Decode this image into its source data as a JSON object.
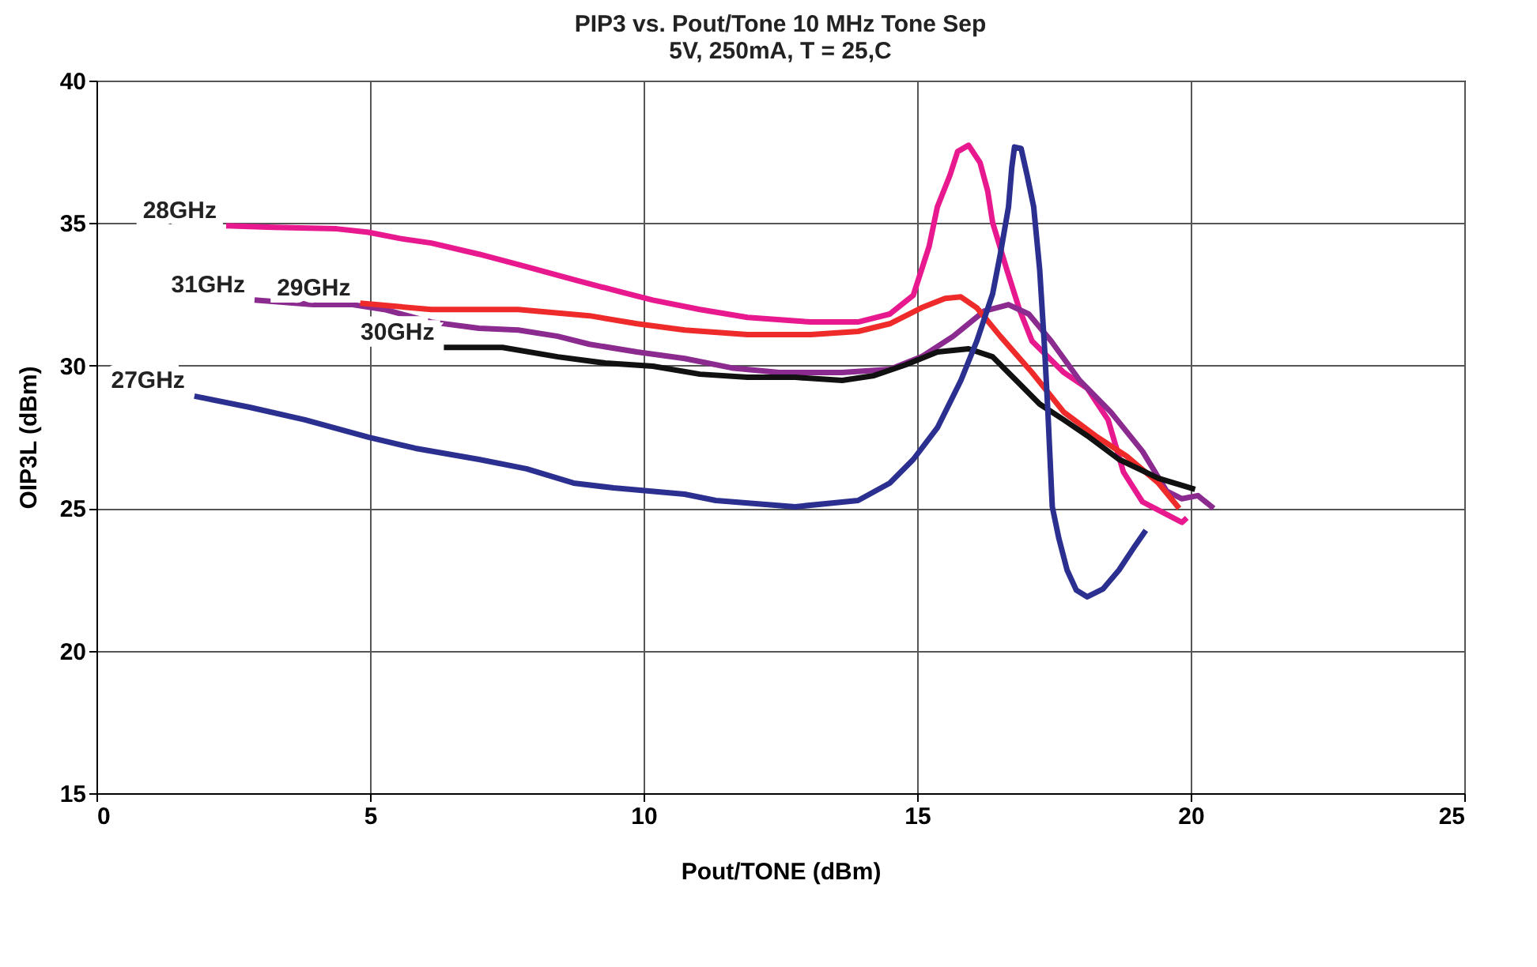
{
  "chart_data": {
    "type": "line",
    "title": [
      "PIP3 vs. Pout/Tone 10 MHz Tone Sep",
      "5V, 250mA, T = 25,C"
    ],
    "xlabel": "Pout/TONE (dBm)",
    "ylabel": "OIP3L (dBm)",
    "xlim": [
      0,
      25
    ],
    "xticks": [
      0,
      5,
      10,
      15,
      20,
      25
    ],
    "ylim": [
      15,
      40
    ],
    "yticks": [
      15,
      20,
      25,
      30,
      35,
      40
    ],
    "grid": true,
    "marker": "none",
    "line_style": "solid",
    "series": [
      {
        "name": "28GHz",
        "color": "#e8198f",
        "x": [
          2.37,
          3.24,
          4.39,
          4.97,
          5.55,
          6.12,
          6.99,
          7.86,
          8.72,
          9.59,
          10.17,
          11.03,
          11.9,
          13.06,
          13.92,
          14.5,
          14.93,
          15.08,
          15.22,
          15.37,
          15.6,
          15.74,
          15.94,
          16.15,
          16.29,
          16.38,
          16.64,
          16.87,
          17.1,
          17.68,
          18.11,
          18.49,
          18.77,
          19.12,
          19.56,
          19.84,
          19.93
        ],
        "values": [
          34.91,
          34.85,
          34.8,
          34.68,
          34.46,
          34.3,
          33.91,
          33.47,
          33.02,
          32.58,
          32.3,
          31.97,
          31.69,
          31.53,
          31.53,
          31.81,
          32.47,
          33.36,
          34.19,
          35.57,
          36.68,
          37.51,
          37.73,
          37.12,
          36.12,
          35.02,
          33.36,
          31.97,
          30.86,
          29.76,
          29.2,
          28.1,
          26.27,
          25.22,
          24.78,
          24.5,
          24.66
        ]
      },
      {
        "name": "31GHz",
        "color": "#8b2a8f",
        "x": [
          2.89,
          3.96,
          4.68,
          5.26,
          6.12,
          6.99,
          7.71,
          8.43,
          9.01,
          9.88,
          10.75,
          11.61,
          12.48,
          13.63,
          14.5,
          15.08,
          15.66,
          16.23,
          16.67,
          17.04,
          17.45,
          17.97,
          18.54,
          19.12,
          19.56,
          19.84,
          20.13,
          20.42
        ],
        "values": [
          32.3,
          32.14,
          32.14,
          31.97,
          31.53,
          31.31,
          31.25,
          31.03,
          30.75,
          30.48,
          30.25,
          29.92,
          29.76,
          29.76,
          29.87,
          30.31,
          31.03,
          31.92,
          32.14,
          31.81,
          30.86,
          29.48,
          28.37,
          26.99,
          25.6,
          25.33,
          25.44,
          24.99
        ]
      },
      {
        "name": "29GHz",
        "color": "#ee2a2a",
        "x": [
          4.82,
          6.12,
          7.71,
          9.01,
          9.88,
          10.75,
          11.9,
          13.06,
          13.92,
          14.5,
          15.08,
          15.51,
          15.8,
          16.09,
          16.52,
          17.1,
          17.68,
          18.26,
          18.83,
          19.41,
          19.79
        ],
        "values": [
          32.19,
          31.97,
          31.97,
          31.75,
          31.47,
          31.25,
          31.09,
          31.09,
          31.2,
          31.47,
          32.03,
          32.36,
          32.41,
          32.03,
          31.03,
          29.76,
          28.37,
          27.54,
          26.82,
          25.88,
          24.99
        ]
      },
      {
        "name": "30GHz",
        "color": "#111111",
        "x": [
          6.35,
          7.42,
          8.43,
          9.3,
          10.17,
          11.03,
          11.9,
          12.77,
          13.63,
          14.21,
          14.79,
          15.37,
          15.94,
          16.38,
          16.81,
          17.24,
          17.68,
          18.11,
          18.69,
          19.41,
          20.08
        ],
        "values": [
          30.64,
          30.64,
          30.31,
          30.09,
          29.98,
          29.7,
          29.59,
          29.59,
          29.48,
          29.65,
          30.03,
          30.48,
          30.59,
          30.31,
          29.48,
          28.65,
          28.1,
          27.54,
          26.71,
          26.05,
          25.66
        ]
      },
      {
        "name": "27GHz",
        "color": "#2b2f8f",
        "x": [
          1.79,
          2.8,
          3.81,
          4.97,
          5.83,
          6.99,
          7.86,
          8.72,
          9.45,
          10.75,
          11.32,
          12.77,
          13.92,
          14.5,
          14.93,
          15.37,
          15.8,
          16.09,
          16.38,
          16.52,
          16.67,
          16.73,
          16.78,
          16.9,
          17.01,
          17.13,
          17.24,
          17.33,
          17.39,
          17.47,
          17.59,
          17.74,
          17.91,
          18.11,
          18.4,
          18.69,
          18.98,
          19.18
        ],
        "values": [
          28.93,
          28.54,
          28.1,
          27.49,
          27.1,
          26.71,
          26.38,
          25.88,
          25.71,
          25.49,
          25.27,
          25.05,
          25.27,
          25.88,
          26.71,
          27.82,
          29.48,
          30.86,
          32.52,
          33.91,
          35.57,
          36.95,
          37.67,
          37.62,
          36.68,
          35.57,
          33.36,
          30.59,
          28.37,
          25.05,
          23.94,
          22.83,
          22.12,
          21.89,
          22.17,
          22.83,
          23.67,
          24.22
        ]
      }
    ]
  }
}
